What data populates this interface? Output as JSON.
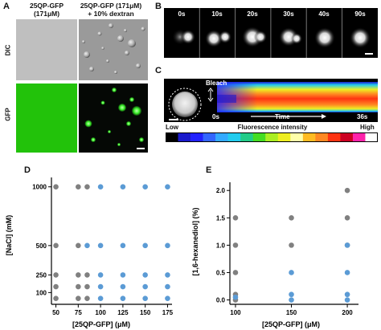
{
  "panel_a": {
    "label": "A",
    "col1_header_line1": "25QP-GFP",
    "col1_header_line2": "(171μM)",
    "col2_header_line1": "25QP-GFP (171μM)",
    "col2_header_line2": "+ 10% dextran",
    "row1_label": "DIC",
    "row2_label": "GFP",
    "colors": {
      "dic_bg": "#bdbdbd",
      "gfp_bg": "#22c20a",
      "dark_bg": "#050805",
      "droplet_green": "#4cff3a"
    }
  },
  "panel_b": {
    "label": "B",
    "timepoints": [
      "0s",
      "10s",
      "20s",
      "30s",
      "40s",
      "90s"
    ]
  },
  "panel_c": {
    "label": "C",
    "bleach_label": "Bleach",
    "time_start": "0s",
    "time_label": "Time",
    "time_end": "36s",
    "scale_low": "Low",
    "scale_title": "Fluorescence intensity",
    "scale_high": "High",
    "scale_colors": [
      "#000000",
      "#1a1acc",
      "#2222ff",
      "#3366ff",
      "#33aaff",
      "#22ccee",
      "#22cc88",
      "#44dd22",
      "#aaee22",
      "#eeee22",
      "#ffffaa",
      "#ffbb22",
      "#ff8822",
      "#ff3311",
      "#cc0022",
      "#ff22aa",
      "#ffffff"
    ]
  },
  "panel_d": {
    "label": "D",
    "chart_data": {
      "type": "scatter",
      "xlabel": "[25QP-GFP] (μM)",
      "ylabel": "[NaCl] (mM)",
      "xticks": [
        50,
        75,
        100,
        125,
        150,
        175
      ],
      "yticks": [
        100,
        250,
        500,
        1000
      ],
      "xlim": [
        45,
        180
      ],
      "ylim": [
        0,
        1080
      ],
      "gray_color": "#808080",
      "blue_color": "#5b9bd5",
      "points_gray": [
        [
          50,
          1000
        ],
        [
          75,
          1000
        ],
        [
          85,
          1000
        ],
        [
          50,
          500
        ],
        [
          75,
          500
        ],
        [
          50,
          250
        ],
        [
          75,
          250
        ],
        [
          85,
          250
        ],
        [
          50,
          150
        ],
        [
          75,
          150
        ],
        [
          85,
          150
        ],
        [
          50,
          50
        ],
        [
          75,
          50
        ],
        [
          85,
          50
        ]
      ],
      "points_blue": [
        [
          100,
          1000
        ],
        [
          125,
          1000
        ],
        [
          150,
          1000
        ],
        [
          175,
          1000
        ],
        [
          85,
          500
        ],
        [
          100,
          500
        ],
        [
          125,
          500
        ],
        [
          150,
          500
        ],
        [
          175,
          500
        ],
        [
          100,
          250
        ],
        [
          125,
          250
        ],
        [
          150,
          250
        ],
        [
          175,
          250
        ],
        [
          100,
          150
        ],
        [
          125,
          150
        ],
        [
          150,
          150
        ],
        [
          175,
          150
        ],
        [
          100,
          50
        ],
        [
          125,
          50
        ],
        [
          150,
          50
        ],
        [
          175,
          50
        ]
      ]
    }
  },
  "panel_e": {
    "label": "E",
    "chart_data": {
      "type": "scatter",
      "xlabel": "[25QP-GFP] (μM)",
      "ylabel": "[1,6-hexanediol] (%)",
      "xticks": [
        100,
        150,
        200
      ],
      "yticks": [
        0.0,
        0.5,
        1.0,
        1.5,
        2.0
      ],
      "ytick_labels": [
        "0.0",
        "0.5",
        "1.0",
        "1.5",
        "2.0"
      ],
      "xlim": [
        95,
        210
      ],
      "ylim": [
        -0.08,
        2.15
      ],
      "gray_color": "#808080",
      "blue_color": "#5b9bd5",
      "points_gray": [
        [
          100,
          1.5
        ],
        [
          100,
          1.0
        ],
        [
          100,
          0.5
        ],
        [
          100,
          0.1
        ],
        [
          100,
          0.0
        ],
        [
          150,
          1.5
        ],
        [
          150,
          1.0
        ],
        [
          200,
          2.0
        ],
        [
          200,
          1.5
        ],
        [
          200,
          1.0
        ]
      ],
      "points_blue": [
        [
          100,
          0.05
        ],
        [
          150,
          0.5
        ],
        [
          150,
          0.1
        ],
        [
          150,
          0.0
        ],
        [
          200,
          1.0
        ],
        [
          200,
          0.5
        ],
        [
          200,
          0.1
        ],
        [
          200,
          0.0
        ]
      ]
    }
  }
}
